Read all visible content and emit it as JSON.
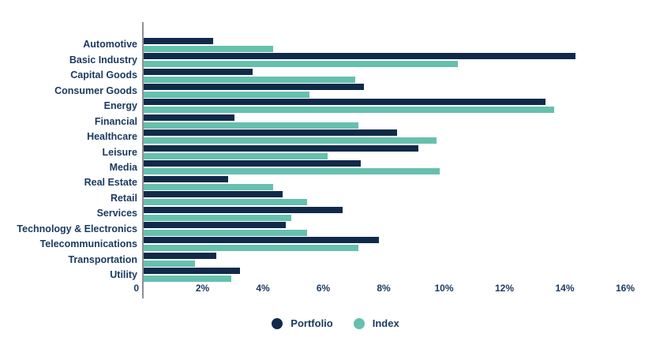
{
  "chart_data": {
    "type": "bar",
    "orientation": "horizontal",
    "title": "",
    "xlabel": "",
    "ylabel": "",
    "grid": false,
    "legend_position": "bottom",
    "categories": [
      "Automotive",
      "Basic Industry",
      "Capital Goods",
      "Consumer Goods",
      "Energy",
      "Financial",
      "Healthcare",
      "Leisure",
      "Media",
      "Real Estate",
      "Retail",
      "Services",
      "Technology & Electronics",
      "Telecommunications",
      "Transportation",
      "Utility"
    ],
    "series": [
      {
        "name": "Portfolio",
        "color": "#112a4a",
        "values": [
          2.3,
          14.3,
          3.6,
          7.3,
          13.3,
          3.0,
          8.4,
          9.1,
          7.2,
          2.8,
          4.6,
          6.6,
          4.7,
          7.8,
          2.4,
          3.2
        ]
      },
      {
        "name": "Index",
        "color": "#66c0ae",
        "values": [
          4.3,
          10.4,
          7.0,
          5.5,
          13.6,
          7.1,
          9.7,
          6.1,
          9.8,
          4.3,
          5.4,
          4.9,
          5.4,
          7.1,
          1.7,
          2.9
        ]
      }
    ],
    "x_axis": {
      "tick_labels": [
        "0",
        "2%",
        "4%",
        "6%",
        "8%",
        "10%",
        "12%",
        "14%",
        "16%"
      ],
      "tick_values": [
        0,
        2,
        4,
        6,
        8,
        10,
        12,
        14,
        16
      ],
      "min": 0,
      "max": 16,
      "unit": "%"
    }
  },
  "legend": {
    "items": [
      {
        "label": "Portfolio",
        "color": "#112a4a"
      },
      {
        "label": "Index",
        "color": "#66c0ae"
      }
    ]
  },
  "colors": {
    "portfolio": "#112a4a",
    "index": "#66c0ae",
    "text": "#1c3a60",
    "axis_line": "#8d9197",
    "background": "#ffffff"
  }
}
